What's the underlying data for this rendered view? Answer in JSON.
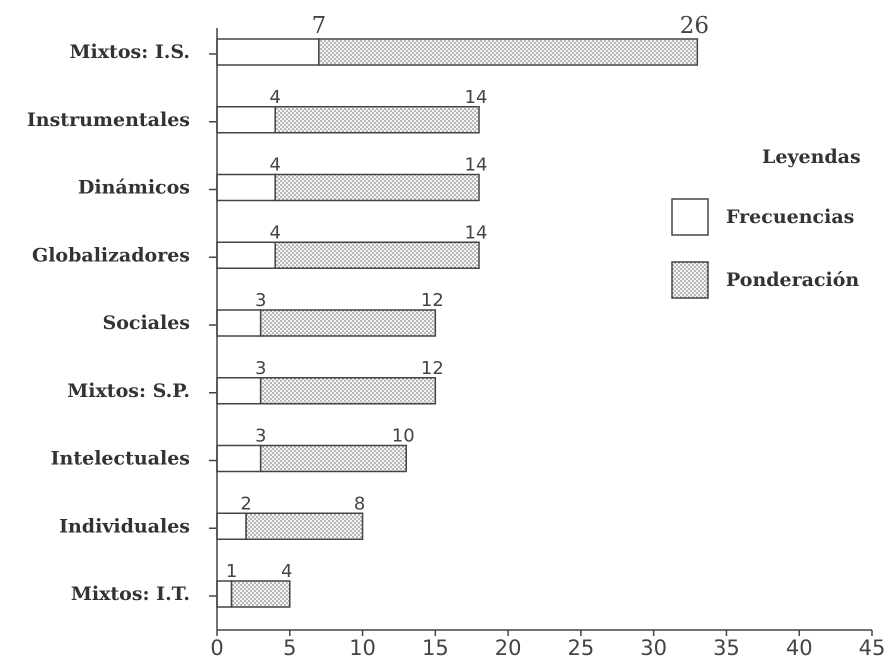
{
  "chart_data": {
    "type": "bar",
    "orientation": "horizontal",
    "stacked": true,
    "categories": [
      "Mixtos: I.S.",
      "Instrumentales",
      "Dinámicos",
      "Globalizadores",
      "Sociales",
      "Mixtos: S.P.",
      "Intelectuales",
      "Individuales",
      "Mixtos: I.T."
    ],
    "series": [
      {
        "name": "Frecuencias",
        "values": [
          7,
          4,
          4,
          4,
          3,
          3,
          3,
          2,
          1
        ],
        "color": "#ffffff"
      },
      {
        "name": "Ponderación",
        "values": [
          26,
          14,
          14,
          14,
          12,
          12,
          10,
          8,
          4
        ],
        "color": "#e8e8e8"
      }
    ],
    "xlim": [
      0,
      45
    ],
    "xticks": [
      0,
      5,
      10,
      15,
      20,
      25,
      30,
      35,
      40,
      45
    ],
    "legend": {
      "title": "Leyendas",
      "position": "right"
    },
    "grid": false
  }
}
